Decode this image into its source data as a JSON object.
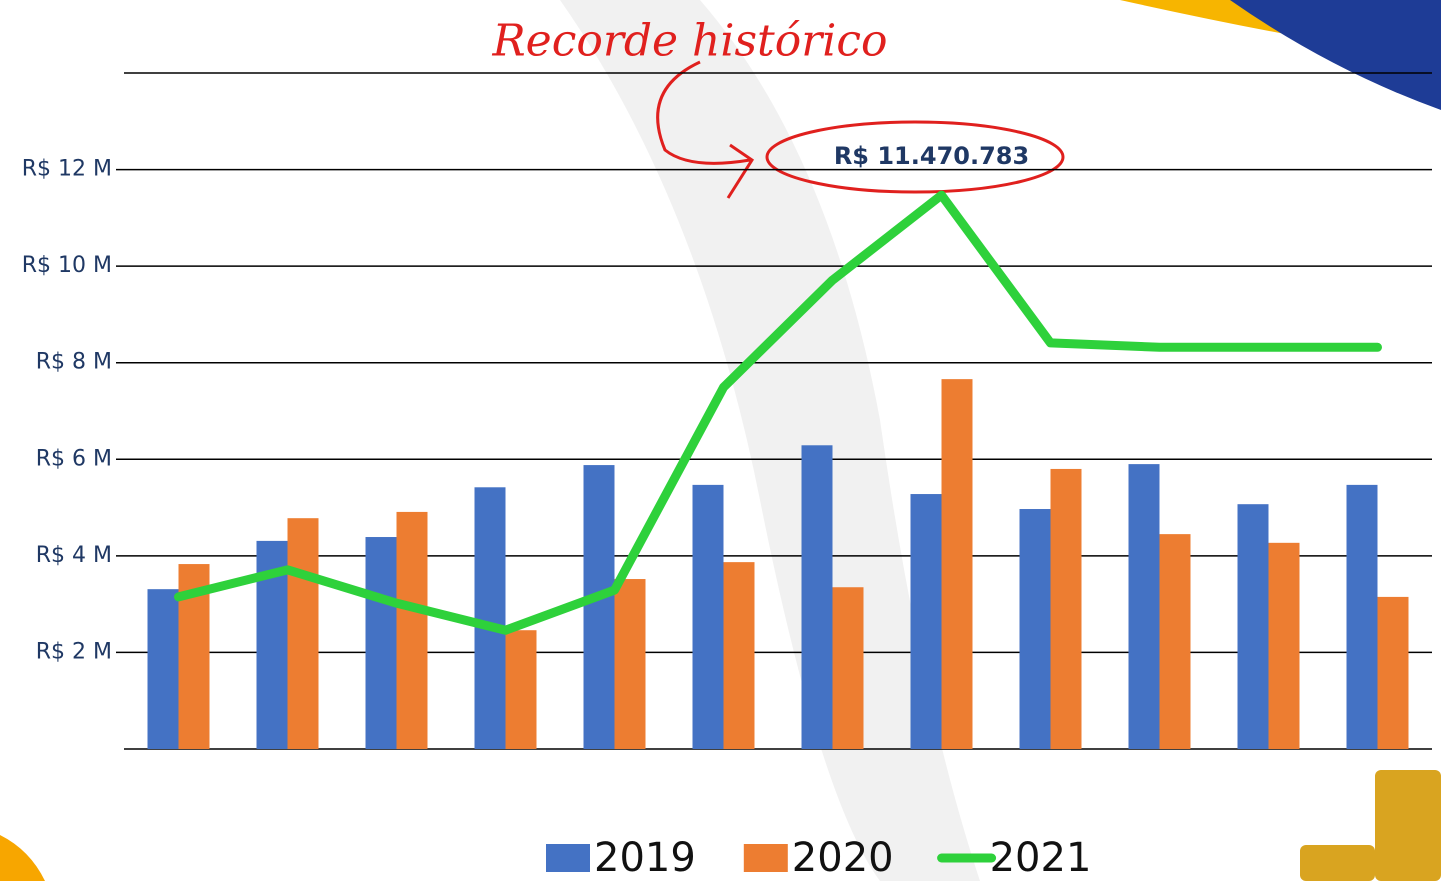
{
  "chart_data": {
    "type": "bar",
    "annotation": "Recorde histórico",
    "categories": [
      null,
      null,
      null,
      null,
      null,
      null,
      null,
      null,
      null,
      null,
      null,
      null
    ],
    "series": [
      {
        "name": "2019",
        "type": "bar",
        "color": "#4472c4",
        "values": [
          3.31,
          4.31,
          4.39,
          5.42,
          5.88,
          5.47,
          6.29,
          5.28,
          4.97,
          5.9,
          5.07,
          5.47
        ]
      },
      {
        "name": "2020",
        "type": "bar",
        "color": "#ed7d31",
        "values": [
          3.83,
          4.78,
          4.91,
          2.46,
          3.52,
          3.87,
          3.35,
          7.66,
          5.8,
          4.45,
          4.27,
          3.15
        ]
      },
      {
        "name": "2021",
        "type": "line",
        "color": "#2ed13b",
        "values": [
          3.15,
          3.71,
          3.02,
          2.46,
          3.29,
          7.49,
          9.71,
          11.470783,
          8.41,
          8.32,
          8.32,
          8.32
        ],
        "value_labels": [
          null,
          null,
          null,
          null,
          null,
          null,
          null,
          "R$ 11.470.783",
          null,
          null,
          null,
          null
        ]
      }
    ],
    "ylim": [
      0,
      14
    ],
    "yticks": [
      {
        "value": 2,
        "label": "R$ 2 M"
      },
      {
        "value": 4,
        "label": "R$ 4 M"
      },
      {
        "value": 6,
        "label": "R$ 6 M"
      },
      {
        "value": 8,
        "label": "R$ 8 M"
      },
      {
        "value": 10,
        "label": "R$ 10 M"
      },
      {
        "value": 12,
        "label": "R$ 12 M"
      }
    ],
    "grid": true,
    "legend": "bottom"
  }
}
